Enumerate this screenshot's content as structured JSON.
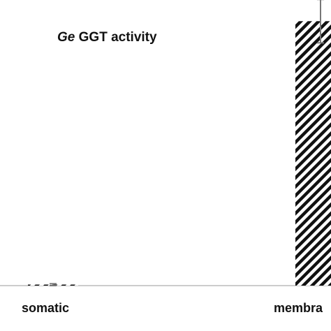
{
  "chart_data": {
    "type": "bar",
    "title_italic": "Ge",
    "title_rest": " GGT activity",
    "categories": [
      "somatic",
      "membra"
    ],
    "values": [
      0.3,
      100
    ],
    "errors": [
      0.4,
      8.2
    ],
    "ylim": [
      0,
      108
    ],
    "grid": false,
    "bar_pattern": "diagonal-hatch",
    "colors": {
      "bar_stroke": "#111111",
      "error_bar": "#777777",
      "axis": "#999999"
    }
  }
}
